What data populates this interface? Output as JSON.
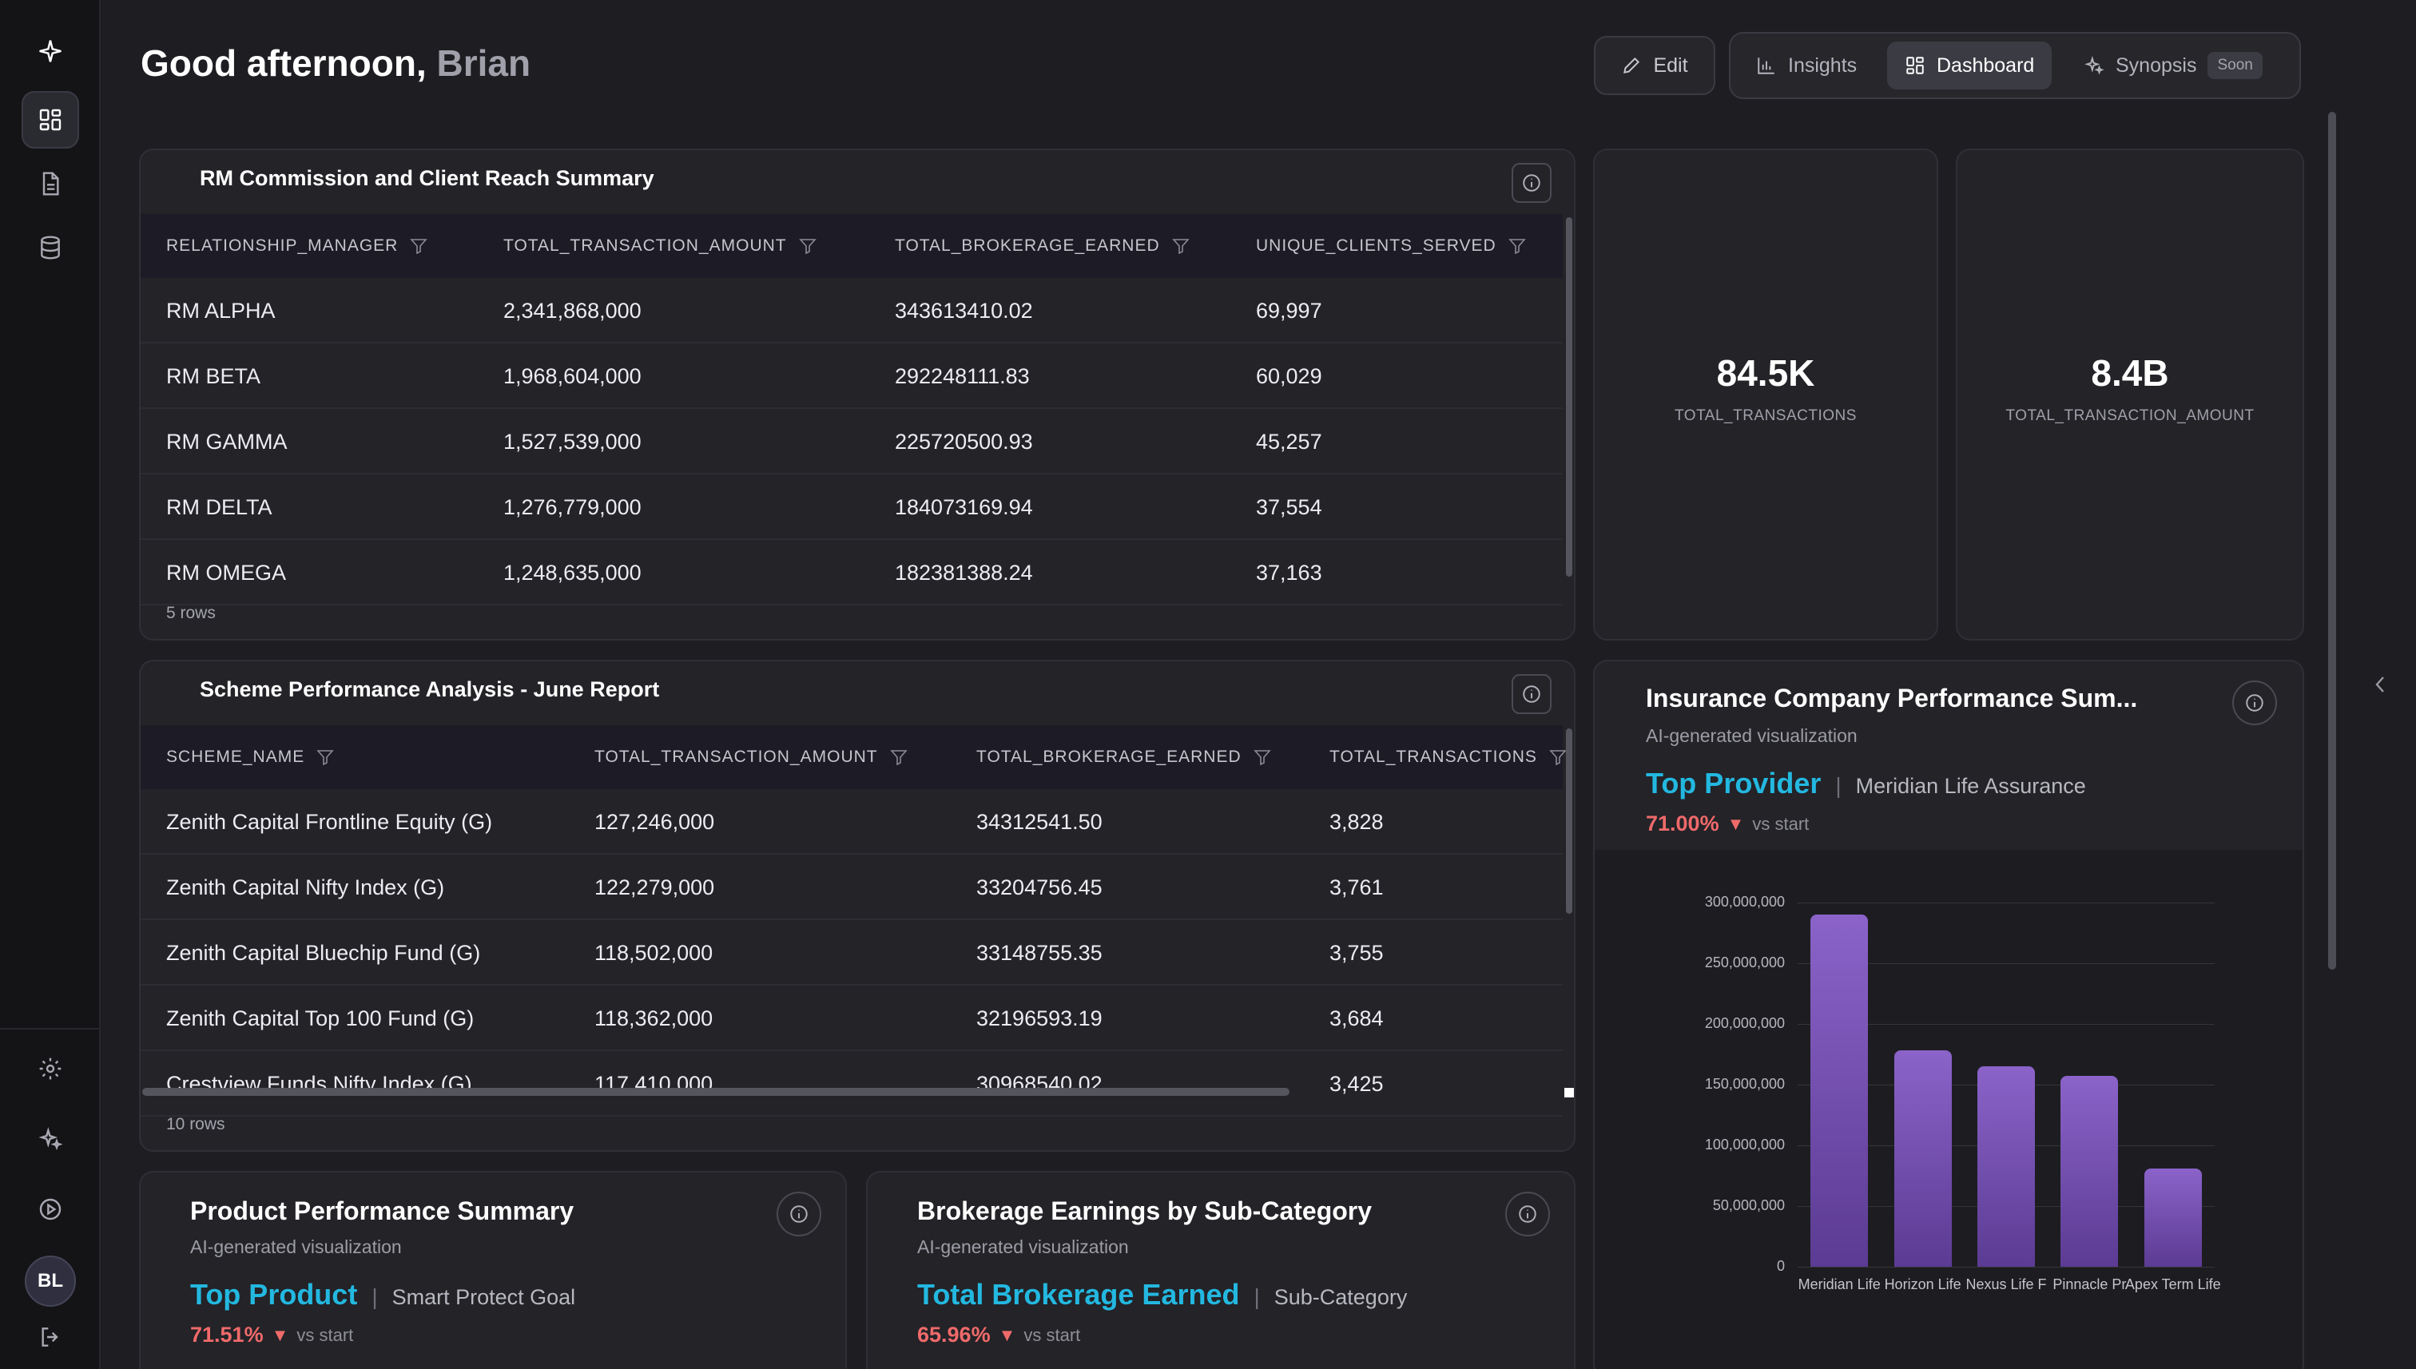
{
  "greeting": {
    "prefix": "Good afternoon,",
    "name": "Brian"
  },
  "header": {
    "edit_label": "Edit",
    "tabs": [
      {
        "label": "Insights",
        "icon": "bar-chart-icon"
      },
      {
        "label": "Dashboard",
        "icon": "grid-icon",
        "active": true
      },
      {
        "label": "Synopsis",
        "icon": "sparkle-icon",
        "badge": "Soon"
      }
    ]
  },
  "sidebar": {
    "user_initials": "BL",
    "top_icons": [
      "logo-sparkle-icon",
      "dashboard-icon",
      "document-icon",
      "database-icon"
    ],
    "bottom_icons": [
      "settings-icon",
      "ai-sparkle-icon",
      "play-icon",
      "logout-icon"
    ]
  },
  "rm_table": {
    "title": "RM Commission and Client Reach Summary",
    "columns": [
      "RELATIONSHIP_MANAGER",
      "TOTAL_TRANSACTION_AMOUNT",
      "TOTAL_BROKERAGE_EARNED",
      "UNIQUE_CLIENTS_SERVED"
    ],
    "rows": [
      [
        "RM ALPHA",
        "2,341,868,000",
        "343613410.02",
        "69,997"
      ],
      [
        "RM BETA",
        "1,968,604,000",
        "292248111.83",
        "60,029"
      ],
      [
        "RM GAMMA",
        "1,527,539,000",
        "225720500.93",
        "45,257"
      ],
      [
        "RM DELTA",
        "1,276,779,000",
        "184073169.94",
        "37,554"
      ],
      [
        "RM OMEGA",
        "1,248,635,000",
        "182381388.24",
        "37,163"
      ]
    ],
    "row_count": "5 rows"
  },
  "scheme_table": {
    "title": "Scheme Performance Analysis - June Report",
    "columns": [
      "SCHEME_NAME",
      "TOTAL_TRANSACTION_AMOUNT",
      "TOTAL_BROKERAGE_EARNED",
      "TOTAL_TRANSACTIONS"
    ],
    "rows": [
      [
        "Zenith Capital Frontline Equity (G)",
        "127,246,000",
        "34312541.50",
        "3,828"
      ],
      [
        "Zenith Capital Nifty Index (G)",
        "122,279,000",
        "33204756.45",
        "3,761"
      ],
      [
        "Zenith Capital Bluechip Fund (G)",
        "118,502,000",
        "33148755.35",
        "3,755"
      ],
      [
        "Zenith Capital Top 100 Fund (G)",
        "118,362,000",
        "32196593.19",
        "3,684"
      ],
      [
        "Crestview Funds Nifty Index (G)",
        "117,410,000",
        "30968540.02",
        "3,425"
      ]
    ],
    "row_count": "10 rows"
  },
  "kpis": [
    {
      "value": "84.5K",
      "label": "TOTAL_TRANSACTIONS"
    },
    {
      "value": "8.4B",
      "label": "TOTAL_TRANSACTION_AMOUNT"
    }
  ],
  "insurance_card": {
    "title": "Insurance Company Performance Sum...",
    "subtitle": "AI-generated visualization",
    "headline_label": "Top Provider",
    "headline_value": "Meridian Life Assurance",
    "trend_pct": "71.00%",
    "trend_text": "vs start"
  },
  "product_card": {
    "title": "Product Performance Summary",
    "subtitle": "AI-generated visualization",
    "headline_label": "Top Product",
    "headline_value": "Smart Protect Goal",
    "trend_pct": "71.51%",
    "trend_text": "vs start"
  },
  "brokerage_card": {
    "title": "Brokerage Earnings by Sub-Category",
    "subtitle": "AI-generated visualization",
    "headline_label": "Total Brokerage Earned",
    "headline_value": "Sub-Category",
    "trend_pct": "65.96%",
    "trend_text": "vs start"
  },
  "chart_data": {
    "type": "bar",
    "categories": [
      "Meridian Life",
      "Horizon Life",
      "Nexus Life F",
      "Pinnacle Pr",
      "Apex Term Life"
    ],
    "values": [
      290000000,
      178000000,
      165000000,
      157000000,
      81000000
    ],
    "y_ticks": [
      "0",
      "50,000,000",
      "100,000,000",
      "150,000,000",
      "200,000,000",
      "250,000,000",
      "300,000,000"
    ],
    "ylim": [
      0,
      300000000
    ],
    "grid": true,
    "colors": {
      "bar_top": "#8b63c9",
      "bar_bottom": "#5b3b93"
    }
  },
  "colors": {
    "accent": "#23b8e0",
    "negative": "#f06a6a"
  }
}
